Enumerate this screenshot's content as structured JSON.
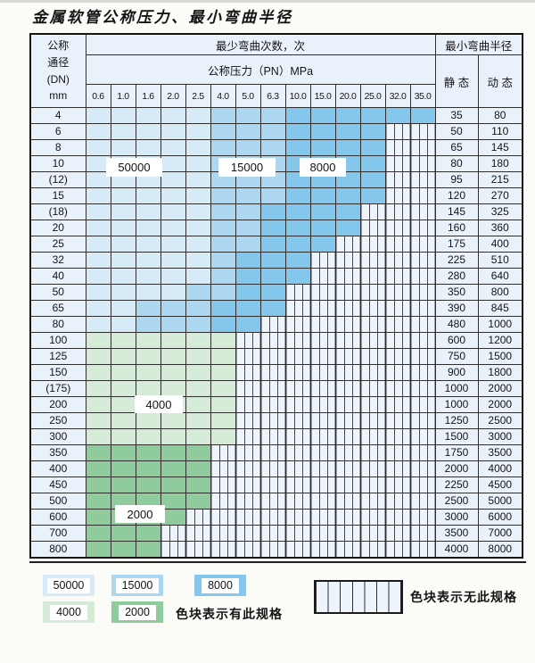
{
  "title": "金属软管公称压力、最小弯曲半径",
  "chart_data": {
    "type": "table",
    "title": "金属软管公称压力、最小弯曲半径",
    "dn_header": "公称\n通径\n(DN)\nmm",
    "bend_times_header": "最少弯曲次数，次",
    "pressure_header": "公称压力（PN）MPa",
    "min_radius_header": "最小弯曲半径",
    "static_header": "静 态",
    "dynamic_header": "动 态",
    "pressure_columns": [
      "0.6",
      "1.0",
      "1.6",
      "2.0",
      "2.5",
      "4.0",
      "5.0",
      "6.3",
      "10.0",
      "15.0",
      "20.0",
      "25.0",
      "32.0",
      "35.0"
    ],
    "cell_code_map": {
      "1": "50000",
      "2": "15000",
      "3": "8000",
      "4": "4000",
      "5": "2000",
      "0": "no-spec"
    },
    "rows": [
      {
        "dn": "4",
        "cells": "11111222333333",
        "static": "35",
        "dynamic": "80"
      },
      {
        "dn": "6",
        "cells": "11111222333300",
        "static": "50",
        "dynamic": "110"
      },
      {
        "dn": "8",
        "cells": "11111222333300",
        "static": "65",
        "dynamic": "145"
      },
      {
        "dn": "10",
        "cells": "11111222333300",
        "static": "80",
        "dynamic": "180"
      },
      {
        "dn": "(12)",
        "cells": "11111222333300",
        "static": "95",
        "dynamic": "215"
      },
      {
        "dn": "15",
        "cells": "11111222333300",
        "static": "120",
        "dynamic": "270"
      },
      {
        "dn": "(18)",
        "cells": "11111223333000",
        "static": "145",
        "dynamic": "325"
      },
      {
        "dn": "20",
        "cells": "11111223333000",
        "static": "160",
        "dynamic": "360"
      },
      {
        "dn": "25",
        "cells": "11111223330000",
        "static": "175",
        "dynamic": "400"
      },
      {
        "dn": "32",
        "cells": "11111233300000",
        "static": "225",
        "dynamic": "510"
      },
      {
        "dn": "40",
        "cells": "11111233300000",
        "static": "280",
        "dynamic": "640"
      },
      {
        "dn": "50",
        "cells": "11112233000000",
        "static": "350",
        "dynamic": "800"
      },
      {
        "dn": "65",
        "cells": "11222333000000",
        "static": "390",
        "dynamic": "845"
      },
      {
        "dn": "80",
        "cells": "11222330000000",
        "static": "480",
        "dynamic": "1000"
      },
      {
        "dn": "100",
        "cells": "44444400000000",
        "static": "600",
        "dynamic": "1200"
      },
      {
        "dn": "125",
        "cells": "44444400000000",
        "static": "750",
        "dynamic": "1500"
      },
      {
        "dn": "150",
        "cells": "44444400000000",
        "static": "900",
        "dynamic": "1800"
      },
      {
        "dn": "(175)",
        "cells": "44444400000000",
        "static": "1000",
        "dynamic": "2000"
      },
      {
        "dn": "200",
        "cells": "44444400000000",
        "static": "1000",
        "dynamic": "2000"
      },
      {
        "dn": "250",
        "cells": "44444400000000",
        "static": "1250",
        "dynamic": "2500"
      },
      {
        "dn": "300",
        "cells": "44444400000000",
        "static": "1500",
        "dynamic": "3000"
      },
      {
        "dn": "350",
        "cells": "55555000000000",
        "static": "1750",
        "dynamic": "3500"
      },
      {
        "dn": "400",
        "cells": "55555000000000",
        "static": "2000",
        "dynamic": "4000"
      },
      {
        "dn": "450",
        "cells": "55555000000000",
        "static": "2250",
        "dynamic": "4500"
      },
      {
        "dn": "500",
        "cells": "55555000000000",
        "static": "2500",
        "dynamic": "5000"
      },
      {
        "dn": "600",
        "cells": "55550000000000",
        "static": "3000",
        "dynamic": "6000"
      },
      {
        "dn": "700",
        "cells": "55500000000000",
        "static": "3500",
        "dynamic": "7000"
      },
      {
        "dn": "800",
        "cells": "55500000000000",
        "static": "4000",
        "dynamic": "8000"
      }
    ]
  },
  "overlay_labels": {
    "l50000": "50000",
    "l15000": "15000",
    "l8000": "8000",
    "l4000": "4000",
    "l2000": "2000"
  },
  "legend": {
    "swatches": [
      {
        "label": "50000"
      },
      {
        "label": "15000"
      },
      {
        "label": "8000"
      },
      {
        "label": "4000"
      },
      {
        "label": "2000"
      }
    ],
    "has_spec_text": "色块表示有此规格",
    "no_spec_text": "色块表示无此规格"
  },
  "colors": {
    "50000": "#d6eaf8",
    "15000": "#add7f1",
    "8000": "#85c6ec",
    "4000": "#d5ebd7",
    "2000": "#90cb9e",
    "no_spec_bg": "#eef4fb",
    "header_bg": "#e9f2fb",
    "grid": "#2e2e2e"
  }
}
